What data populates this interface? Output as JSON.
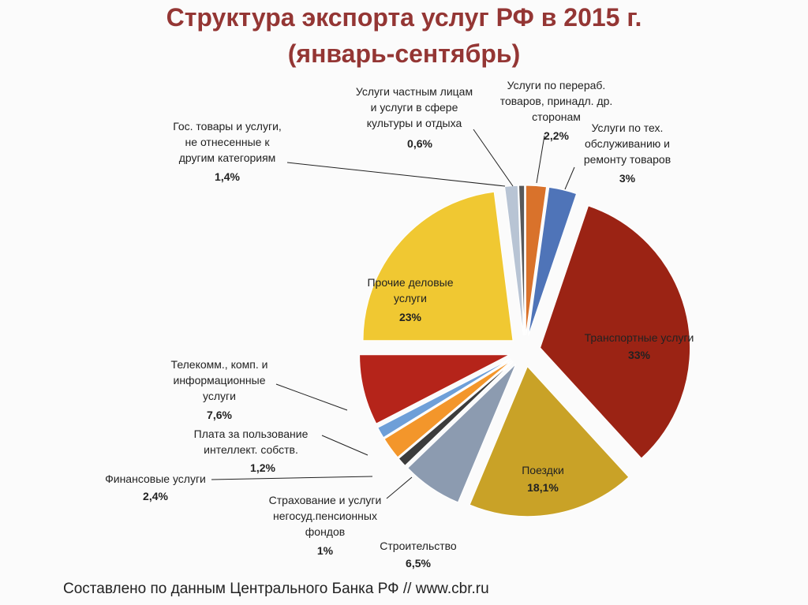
{
  "chart_data": {
    "type": "pie",
    "title": "Структура экспорта услуг РФ в 2015 г.",
    "subtitle": "(январь-сентябрь)",
    "footnote": "Составлено по данным Центрального Банка РФ // www.cbr.ru",
    "categories": [
      "Услуги по перераб.\nтоваров, принадл. др.\nсторонам",
      "Услуги по тех.\nобслуживанию и\nремонту товаров",
      "Транспортные услуги",
      "Поездки",
      "Строительство",
      "Страхование и услуги\nнегосуд.пенсионных\nфондов",
      "Финансовые услуги",
      "Плата за пользование\nинтеллект. собств.",
      "Телекомм., комп. и\nинформационные\nуслуги",
      "Прочие деловые\nуслуги",
      "Гос. товары и услуги,\nне отнесенные к\nдругим категориям",
      "Услуги частным лицам\nи услуги в сфере\nкультуры и отдыха"
    ],
    "values": [
      2.2,
      3,
      33,
      18.1,
      6.5,
      1,
      2.4,
      1.2,
      7.6,
      23,
      1.4,
      0.6
    ],
    "value_labels": [
      "2,2%",
      "3%",
      "33%",
      "18,1%",
      "6,5%",
      "1%",
      "2,4%",
      "1,2%",
      "7,6%",
      "23%",
      "1,4%",
      "0,6%"
    ],
    "colors": [
      "#d9722b",
      "#4f74b8",
      "#9b2314",
      "#c9a227",
      "#8c9bb0",
      "#3c3c3c",
      "#f3962b",
      "#6e9fd8",
      "#b5241a",
      "#f0c832",
      "#b8c4d4",
      "#58595b"
    ]
  }
}
